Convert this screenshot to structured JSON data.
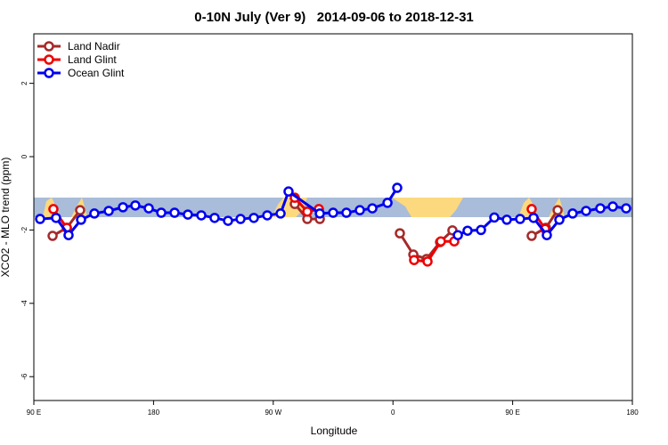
{
  "chart_data": {
    "type": "line",
    "title": "0-10N July (Ver 9)   2014-09-06 to 2018-12-31",
    "x_label": "Longitude",
    "y_label": "XCO2 - MLO trend (ppm)",
    "xlim": [
      90,
      540
    ],
    "ylim": [
      -6.65,
      3.35
    ],
    "xticks": [
      {
        "value": 90,
        "label": "90 E"
      },
      180,
      {
        "value": 270,
        "label": "90 W"
      },
      {
        "value": 360,
        "label": "0"
      },
      {
        "value": 450,
        "label": "90 E"
      },
      {
        "value": 540,
        "label": "180"
      }
    ],
    "yticks": [
      2,
      0,
      -2,
      -4,
      -6
    ],
    "legend": "top-left",
    "series": [
      {
        "name": "Land Nadir",
        "color": "#a52a2a",
        "x": [
          104.1,
          114.8,
          124.8,
          null,
          286.2,
          295.6,
          305.0,
          null,
          365.2,
          375.3,
          385.3,
          395.4,
          404.7,
          null,
          464.3,
          475.0,
          483.8
        ],
        "values": [
          -2.16,
          -1.94,
          -1.46,
          null,
          -1.29,
          -1.7,
          -1.7,
          null,
          -2.09,
          -2.67,
          -2.79,
          -2.33,
          -2.01,
          null,
          -2.16,
          -1.94,
          -1.46
        ]
      },
      {
        "name": "Land Glint",
        "color": "#ee0000",
        "x": [
          104.7,
          114.8,
          null,
          286.2,
          295.6,
          304.3,
          null,
          375.9,
          386.0,
          396.0,
          406.1,
          null,
          464.3,
          474.4
        ],
        "values": [
          -1.43,
          -1.94,
          null,
          -1.12,
          -1.5,
          -1.43,
          null,
          -2.82,
          -2.86,
          -2.31,
          -2.31,
          null,
          -1.43,
          -1.97
        ]
      },
      {
        "name": "Ocean Glint",
        "color": "#0000ee",
        "x": [
          94.7,
          106.7,
          116.1,
          125.5,
          135.5,
          146.3,
          157.0,
          166.3,
          176.4,
          185.8,
          195.8,
          205.8,
          215.9,
          225.9,
          236.0,
          245.4,
          255.4,
          265.5,
          275.5,
          281.5,
          305.0,
          315.0,
          325.0,
          335.1,
          344.5,
          355.9,
          363.2,
          null,
          408.8,
          416.1,
          426.2,
          436.2,
          445.6,
          455.6,
          465.7,
          475.7,
          485.1,
          495.1,
          505.2,
          515.9,
          525.3,
          535.3
        ],
        "values": [
          -1.7,
          -1.67,
          -2.14,
          -1.72,
          -1.55,
          -1.48,
          -1.38,
          -1.33,
          -1.41,
          -1.53,
          -1.53,
          -1.58,
          -1.6,
          -1.67,
          -1.75,
          -1.7,
          -1.67,
          -1.6,
          -1.55,
          -0.95,
          -1.55,
          -1.53,
          -1.53,
          -1.46,
          -1.41,
          -1.26,
          -0.85,
          null,
          -2.14,
          -2.02,
          -2.0,
          -1.66,
          -1.72,
          -1.7,
          -1.67,
          -2.14,
          -1.72,
          -1.55,
          -1.48,
          -1.41,
          -1.36,
          -1.41
        ]
      }
    ]
  }
}
